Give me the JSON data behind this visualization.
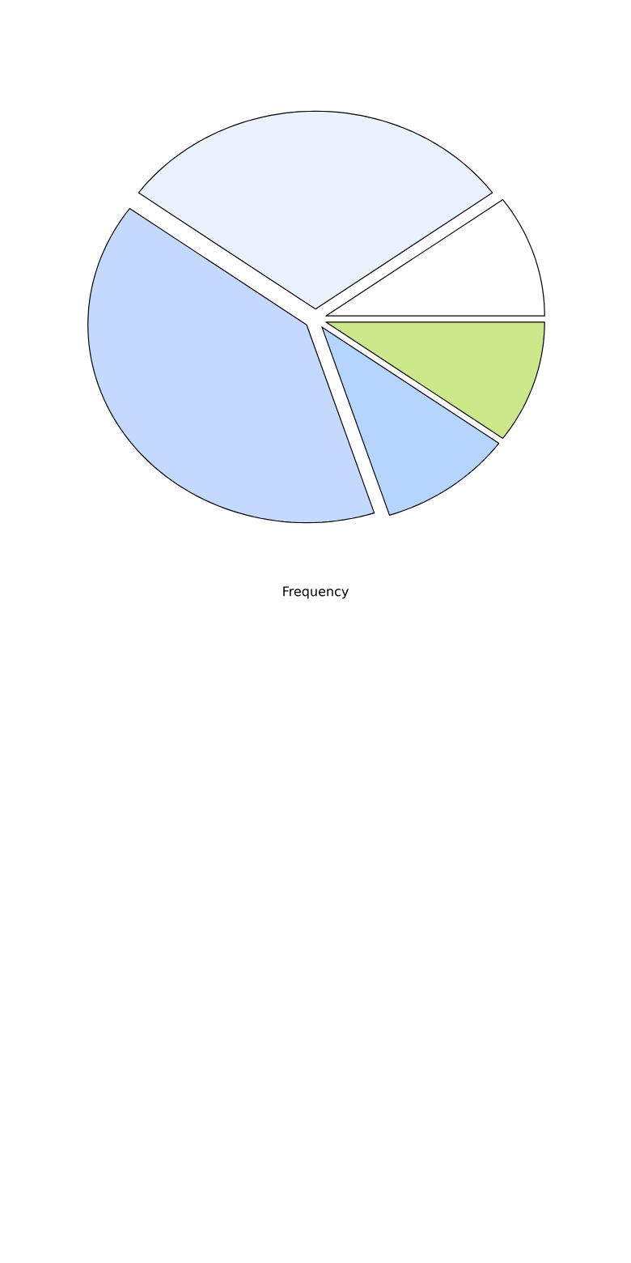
{
  "chart_data": {
    "type": "pie",
    "xlabel": "Frequency",
    "categories": [
      null,
      null,
      null,
      null,
      null
    ],
    "values": [
      10,
      30,
      40,
      10,
      10
    ],
    "colors": [
      "#ffffff",
      "#eaf2ff",
      "#c5d9ff",
      "#b5d5ff",
      "#cde88a"
    ]
  }
}
